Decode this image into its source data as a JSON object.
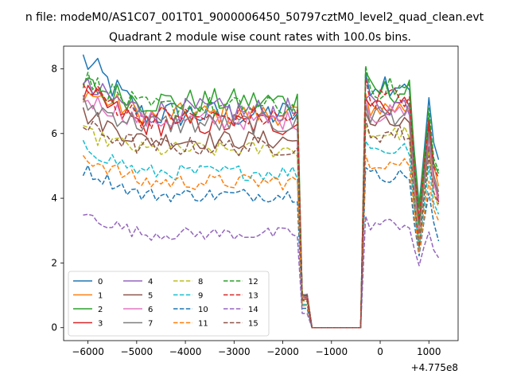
{
  "chart_data": {
    "type": "line",
    "suptitle": "n file: modeM0/AS1C07_001T01_9000006450_50797cztM0_level2_quad_clean.evt",
    "title": "Quadrant 2 module wise count rates with 100.0s bins.",
    "xlabel": "",
    "ylabel": "",
    "x_offset_label": "+4.775e8",
    "xlim": [
      -6500,
      1600
    ],
    "ylim": [
      -0.4,
      8.7
    ],
    "xticks": [
      -6000,
      -5000,
      -4000,
      -3000,
      -2000,
      -1000,
      0,
      1000
    ],
    "xtick_labels": [
      "−6000",
      "−5000",
      "−4000",
      "−3000",
      "−2000",
      "−1000",
      "0",
      "1000"
    ],
    "yticks": [
      0,
      2,
      4,
      6,
      8
    ],
    "ytick_labels": [
      "0",
      "2",
      "4",
      "6",
      "8"
    ],
    "legend_position": "lower-left",
    "legend_columns": 4,
    "x_range": {
      "start": -6100,
      "end": 1200,
      "step": 100
    },
    "gap": {
      "drop_start": -1600,
      "zero_from": -1400,
      "zero_to": -400,
      "recover_end": -300
    },
    "dip_region": {
      "center": 800,
      "half_width": 150
    },
    "series": [
      {
        "name": "0",
        "color": "#1f77b4",
        "style": "solid",
        "level": 6.6,
        "start": 8.3,
        "noise": 0.45,
        "post": 7.6,
        "post_start": 7.9,
        "dip": 3.8,
        "end": 5.1
      },
      {
        "name": "1",
        "color": "#ff7f0e",
        "style": "solid",
        "level": 6.6,
        "start": 7.3,
        "noise": 0.35,
        "post": 6.8,
        "post_start": 7.2,
        "dip": 3.0,
        "end": 4.3
      },
      {
        "name": "2",
        "color": "#2ca02c",
        "style": "solid",
        "level": 7.0,
        "start": 7.5,
        "noise": 0.4,
        "post": 7.3,
        "post_start": 7.8,
        "dip": 3.8,
        "end": 4.6
      },
      {
        "name": "3",
        "color": "#d62728",
        "style": "solid",
        "level": 6.3,
        "start": 7.2,
        "noise": 0.4,
        "post": 6.9,
        "post_start": 7.0,
        "dip": 2.8,
        "end": 4.0
      },
      {
        "name": "4",
        "color": "#9467bd",
        "style": "solid",
        "level": 6.7,
        "start": 7.4,
        "noise": 0.4,
        "post": 6.9,
        "post_start": 7.1,
        "dip": 3.4,
        "end": 4.1
      },
      {
        "name": "5",
        "color": "#8c564b",
        "style": "solid",
        "level": 5.8,
        "start": 6.6,
        "noise": 0.3,
        "post": 6.3,
        "post_start": 6.6,
        "dip": 2.9,
        "end": 4.0
      },
      {
        "name": "6",
        "color": "#e377c2",
        "style": "solid",
        "level": 6.4,
        "start": 7.1,
        "noise": 0.3,
        "post": 6.6,
        "post_start": 7.0,
        "dip": 3.0,
        "end": 3.9
      },
      {
        "name": "7",
        "color": "#7f7f7f",
        "style": "solid",
        "level": 6.3,
        "start": 6.9,
        "noise": 0.35,
        "post": 6.6,
        "post_start": 6.9,
        "dip": 3.1,
        "end": 4.2
      },
      {
        "name": "8",
        "color": "#bcbd22",
        "style": "dashed",
        "level": 5.5,
        "start": 6.0,
        "noise": 0.25,
        "post": 6.0,
        "post_start": 6.2,
        "dip": 2.6,
        "end": 3.6
      },
      {
        "name": "9",
        "color": "#17becf",
        "style": "dashed",
        "level": 4.8,
        "start": 5.6,
        "noise": 0.25,
        "post": 5.5,
        "post_start": 5.8,
        "dip": 2.4,
        "end": 3.5
      },
      {
        "name": "10",
        "color": "#1f77b4",
        "style": "dashed",
        "level": 4.1,
        "start": 4.9,
        "noise": 0.22,
        "post": 4.7,
        "post_start": 5.0,
        "dip": 2.2,
        "end": 2.7
      },
      {
        "name": "11",
        "color": "#ff7f0e",
        "style": "dashed",
        "level": 4.5,
        "start": 5.3,
        "noise": 0.25,
        "post": 5.1,
        "post_start": 5.4,
        "dip": 2.3,
        "end": 3.3
      },
      {
        "name": "12",
        "color": "#2ca02c",
        "style": "dashed",
        "level": 6.8,
        "start": 7.7,
        "noise": 0.35,
        "post": 7.4,
        "post_start": 8.1,
        "dip": 3.2,
        "end": 4.8
      },
      {
        "name": "13",
        "color": "#d62728",
        "style": "dashed",
        "level": 6.5,
        "start": 7.4,
        "noise": 0.35,
        "post": 7.1,
        "post_start": 7.6,
        "dip": 3.3,
        "end": 4.5
      },
      {
        "name": "14",
        "color": "#9467bd",
        "style": "dashed",
        "level": 2.9,
        "start": 3.5,
        "noise": 0.2,
        "post": 3.2,
        "post_start": 3.4,
        "dip": 1.9,
        "end": 2.2
      },
      {
        "name": "15",
        "color": "#8c564b",
        "style": "dashed",
        "level": 5.6,
        "start": 6.2,
        "noise": 0.3,
        "post": 6.0,
        "post_start": 6.4,
        "dip": 2.5,
        "end": 3.8
      }
    ]
  }
}
